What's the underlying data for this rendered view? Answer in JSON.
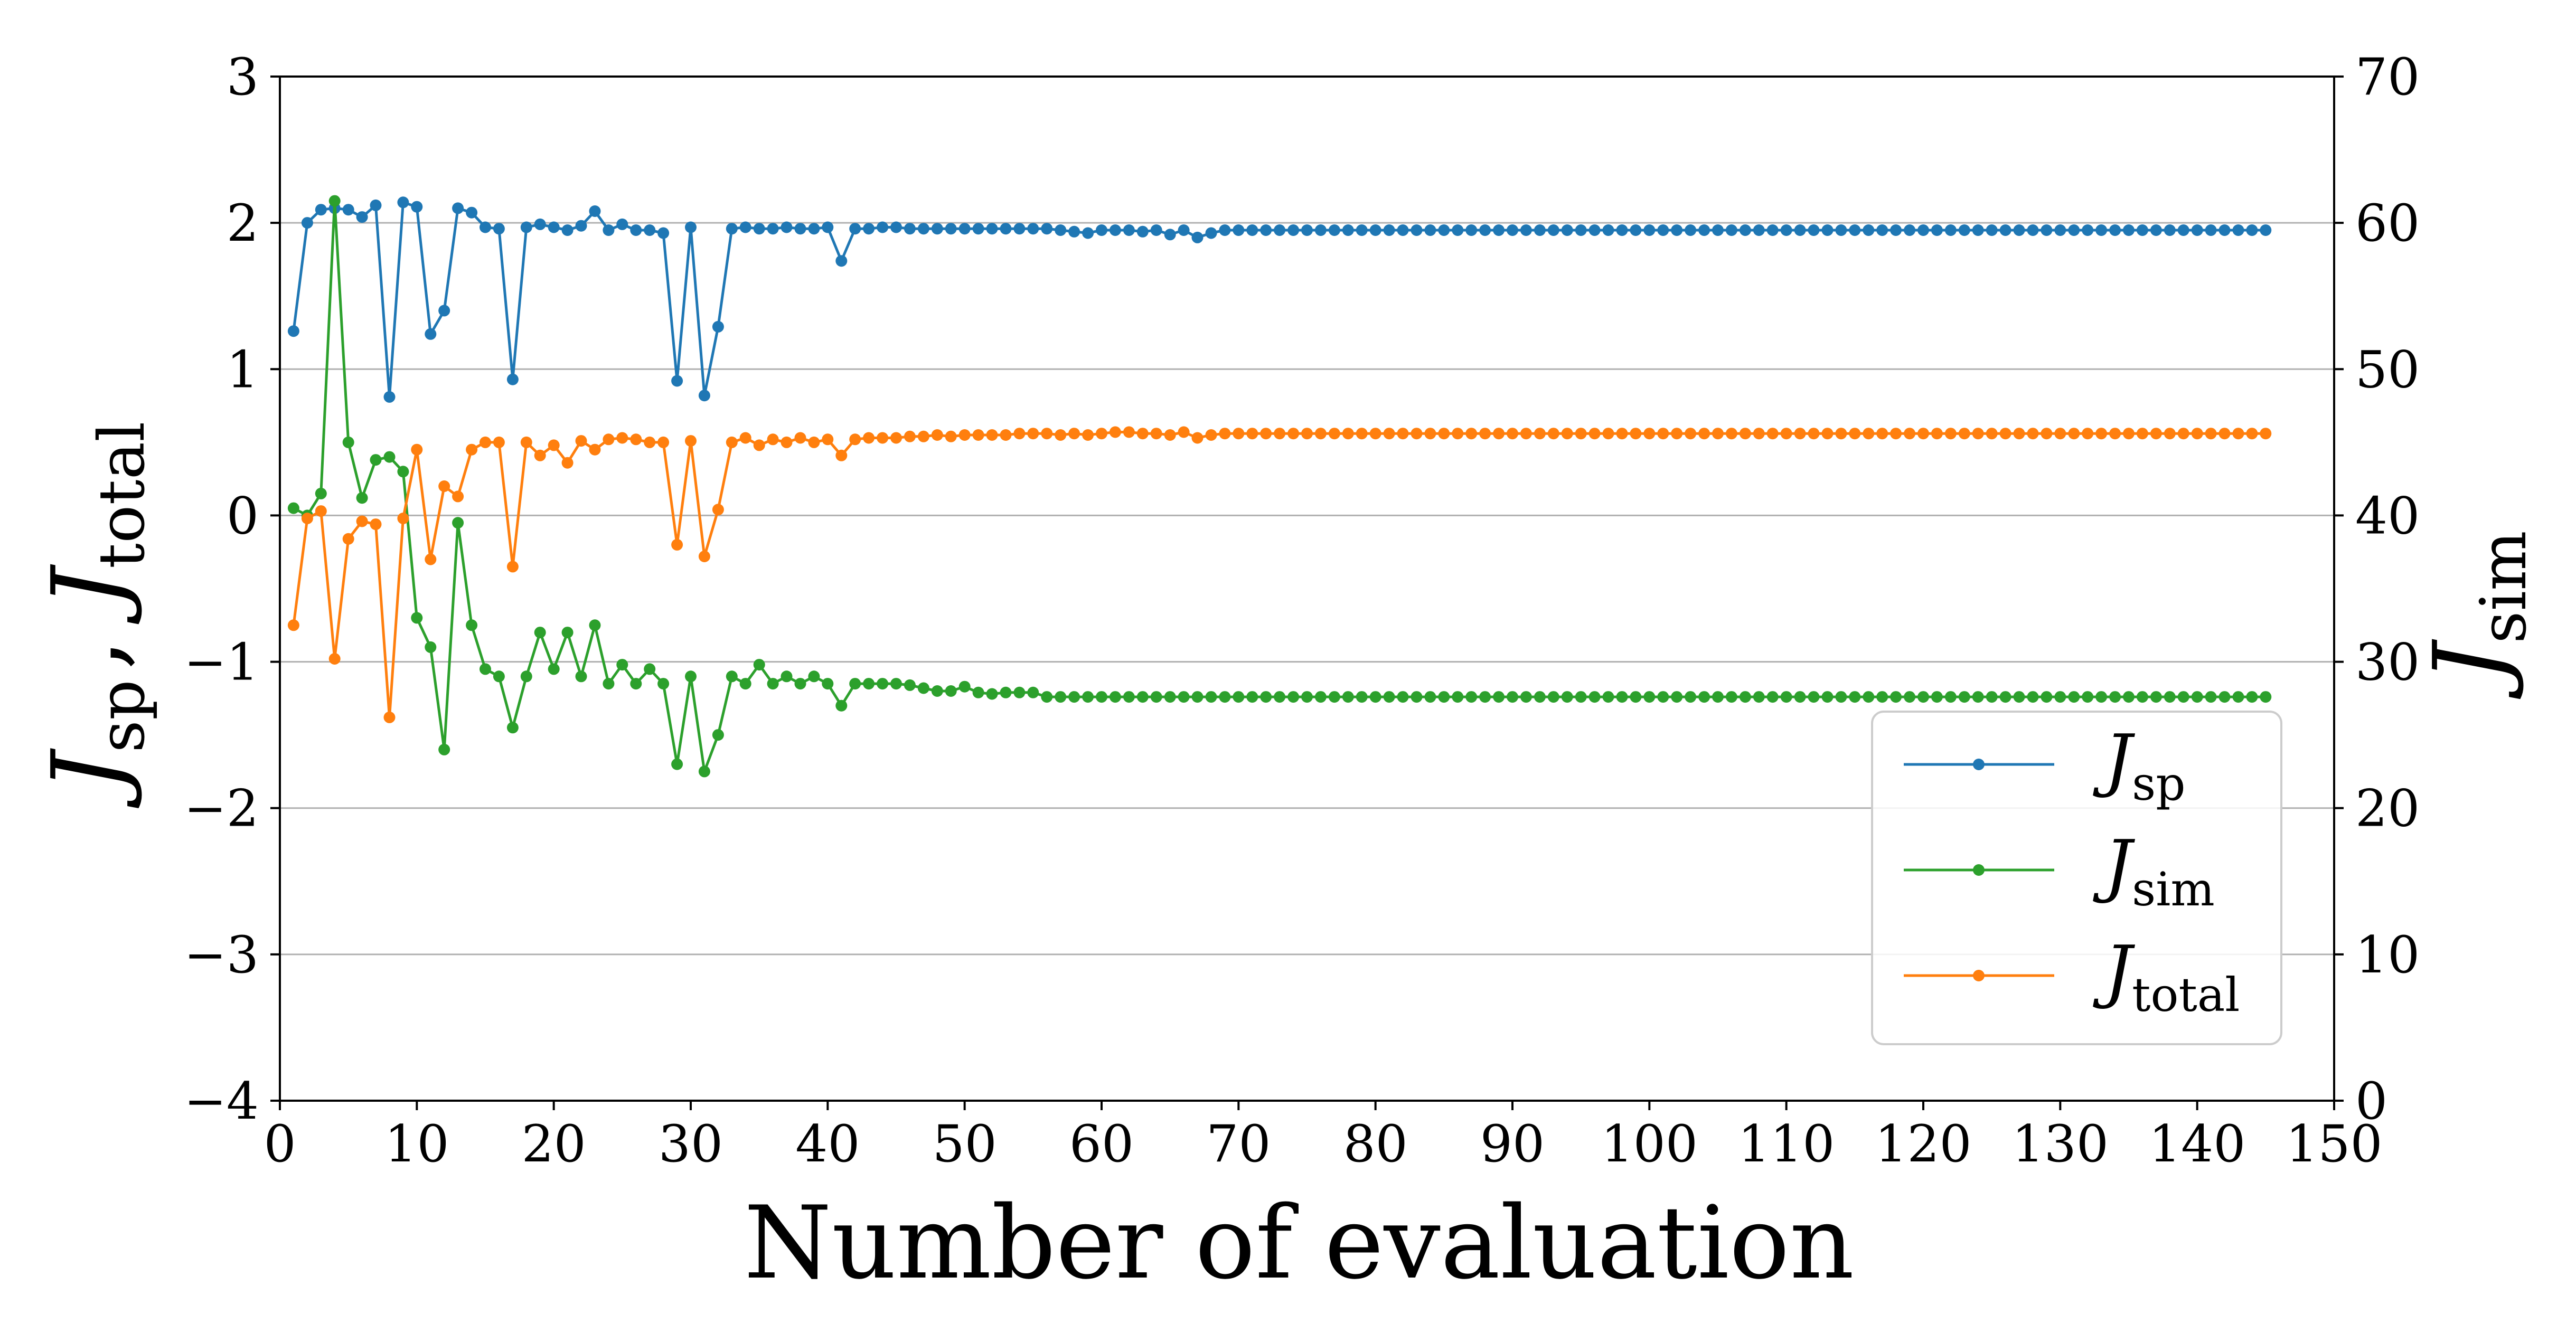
{
  "chart_data": {
    "type": "line",
    "xlabel": "Number of evaluation",
    "ylabel_left": {
      "parts": [
        {
          "main": "J",
          "sub": "sp"
        },
        {
          "sep": ", "
        },
        {
          "main": "J",
          "sub": "total"
        }
      ]
    },
    "ylabel_right": {
      "main": "J",
      "sub": "sim"
    },
    "xlim": [
      0,
      150
    ],
    "ylim_left": [
      -4,
      3
    ],
    "ylim_right": [
      0,
      70
    ],
    "x_ticks": [
      0,
      10,
      20,
      30,
      40,
      50,
      60,
      70,
      80,
      90,
      100,
      110,
      120,
      130,
      140,
      150
    ],
    "y_ticks_left": [
      3,
      2,
      1,
      0,
      -1,
      -2,
      -3,
      -4
    ],
    "y_tick_labels_left": [
      "3",
      "2",
      "1",
      "0",
      "−1",
      "−2",
      "−3",
      "−4"
    ],
    "y_ticks_right": [
      70,
      60,
      50,
      40,
      30,
      20,
      10,
      0
    ],
    "grid": "horizontal",
    "legend_placement": "lower-right",
    "colors": {
      "sp": "#1f77b4",
      "sim": "#2ca02c",
      "total": "#ff7f0e",
      "grid": "#b0b0b0"
    },
    "series": [
      {
        "key": "sp",
        "name_main": "J",
        "name_sub": "sp",
        "axis": "left",
        "color": "#1f77b4",
        "head": [
          1.26,
          2.0,
          2.09,
          2.1,
          2.09,
          2.04,
          2.12,
          0.81,
          2.14,
          2.11,
          1.24,
          1.4,
          2.1,
          2.07,
          1.97,
          1.96,
          0.93,
          1.97,
          1.99,
          1.97,
          1.95,
          1.98,
          2.08,
          1.95,
          1.99,
          1.95,
          1.95,
          1.93,
          0.92,
          1.97,
          0.82,
          1.29,
          1.96,
          1.97,
          1.96,
          1.96,
          1.97,
          1.96,
          1.96,
          1.97,
          1.74,
          1.96,
          1.96,
          1.97,
          1.97,
          1.96,
          1.96,
          1.96,
          1.96,
          1.96,
          1.96,
          1.96,
          1.96,
          1.96,
          1.96,
          1.96,
          1.95,
          1.94,
          1.93,
          1.95,
          1.95,
          1.95,
          1.94,
          1.95,
          1.92,
          1.95,
          1.9,
          1.93,
          1.95,
          1.95
        ],
        "tail_value": 1.95
      },
      {
        "key": "sim",
        "name_main": "J",
        "name_sub": "sim",
        "axis": "right",
        "color": "#2ca02c",
        "head": [
          40.5,
          40.0,
          41.5,
          61.5,
          45.0,
          41.2,
          43.8,
          44.0,
          43.0,
          33.0,
          31.0,
          24.0,
          39.5,
          32.5,
          29.5,
          29.0,
          25.5,
          29.0,
          32.0,
          29.5,
          32.0,
          29.0,
          32.5,
          28.5,
          29.8,
          28.5,
          29.5,
          28.5,
          23.0,
          29.0,
          22.5,
          25.0,
          29.0,
          28.5,
          29.8,
          28.5,
          29.0,
          28.5,
          29.0,
          28.5,
          27.0,
          28.5,
          28.5,
          28.5,
          28.5,
          28.4,
          28.2,
          28.0,
          28.0,
          28.3,
          27.9,
          27.8,
          27.9,
          27.9,
          27.9
        ],
        "tail_value": 27.6
      },
      {
        "key": "total",
        "name_main": "J",
        "name_sub": "total",
        "axis": "left",
        "color": "#ff7f0e",
        "head": [
          -0.75,
          -0.02,
          0.03,
          -0.98,
          -0.16,
          -0.04,
          -0.06,
          -1.38,
          -0.02,
          0.45,
          -0.3,
          0.2,
          0.13,
          0.45,
          0.5,
          0.5,
          -0.35,
          0.5,
          0.41,
          0.48,
          0.36,
          0.51,
          0.45,
          0.52,
          0.53,
          0.52,
          0.5,
          0.5,
          -0.2,
          0.51,
          -0.28,
          0.04,
          0.5,
          0.53,
          0.48,
          0.52,
          0.5,
          0.53,
          0.5,
          0.52,
          0.41,
          0.52,
          0.53,
          0.53,
          0.53,
          0.54,
          0.54,
          0.55,
          0.54,
          0.55,
          0.55,
          0.55,
          0.55,
          0.56,
          0.56,
          0.56,
          0.55,
          0.56,
          0.55,
          0.56,
          0.57,
          0.57,
          0.56,
          0.56,
          0.55,
          0.57,
          0.53,
          0.55,
          0.56,
          0.56
        ],
        "tail_value": 0.56
      }
    ],
    "n_points": 145
  }
}
